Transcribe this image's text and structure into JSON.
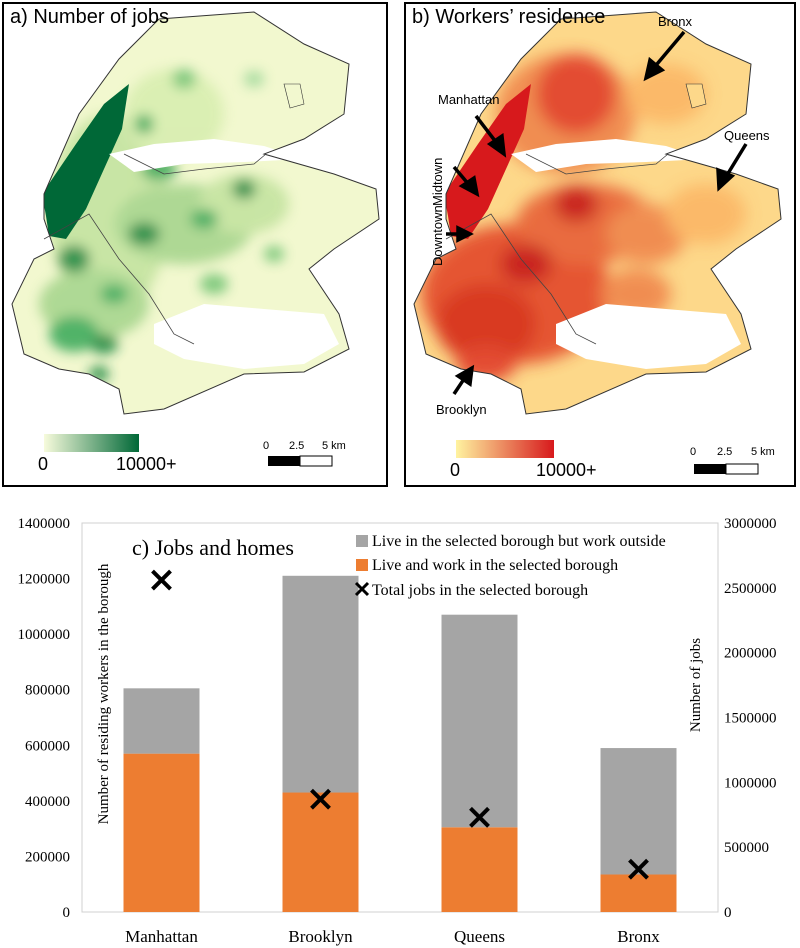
{
  "panel_a": {
    "title": "a) Number of jobs",
    "legend_min": "0",
    "legend_max": "10000+",
    "legend_colors": [
      "#f7fbdc",
      "#006837"
    ],
    "scale_labels": [
      "0",
      "2.5",
      "5 km"
    ]
  },
  "panel_b": {
    "title": "b) Workers’ residence",
    "legend_min": "0",
    "legend_max": "10000+",
    "legend_colors": [
      "#fff3a0",
      "#d7191c"
    ],
    "scale_labels": [
      "0",
      "2.5",
      "5 km"
    ],
    "labels": {
      "bronx": "Bronx",
      "manhattan": "Manhattan",
      "queens": "Queens",
      "midtown": "Midtown",
      "downtown": "Downtown",
      "brooklyn": "Brooklyn"
    }
  },
  "chart_data": {
    "type": "bar",
    "title": "c) Jobs and homes",
    "categories": [
      "Manhattan",
      "Brooklyn",
      "Queens",
      "Bronx"
    ],
    "ylabel": "Number of residing workers in the borough",
    "y2label": "Number of jobs",
    "ylim": [
      0,
      1400000
    ],
    "y2lim": [
      0,
      3000000
    ],
    "yticks": [
      "0",
      "200000",
      "400000",
      "600000",
      "800000",
      "1000000",
      "1200000",
      "1400000"
    ],
    "y2ticks": [
      "0",
      "500000",
      "1000000",
      "1500000",
      "2000000",
      "2500000",
      "3000000"
    ],
    "stacked": true,
    "legend_position": "top-right",
    "grid": false,
    "series": [
      {
        "name": "Live and work in the selected borough",
        "values": [
          570000,
          430000,
          305000,
          135000
        ],
        "color": "#ed7d31",
        "axis": "left"
      },
      {
        "name": "Live in the selected borough but work outside",
        "values": [
          235000,
          780000,
          765000,
          455000
        ],
        "color": "#a5a5a5",
        "axis": "left"
      },
      {
        "name": "Total jobs in the selected borough",
        "values": [
          2560000,
          870000,
          730000,
          330000
        ],
        "marker": "x",
        "color": "#000000",
        "axis": "right"
      }
    ]
  }
}
